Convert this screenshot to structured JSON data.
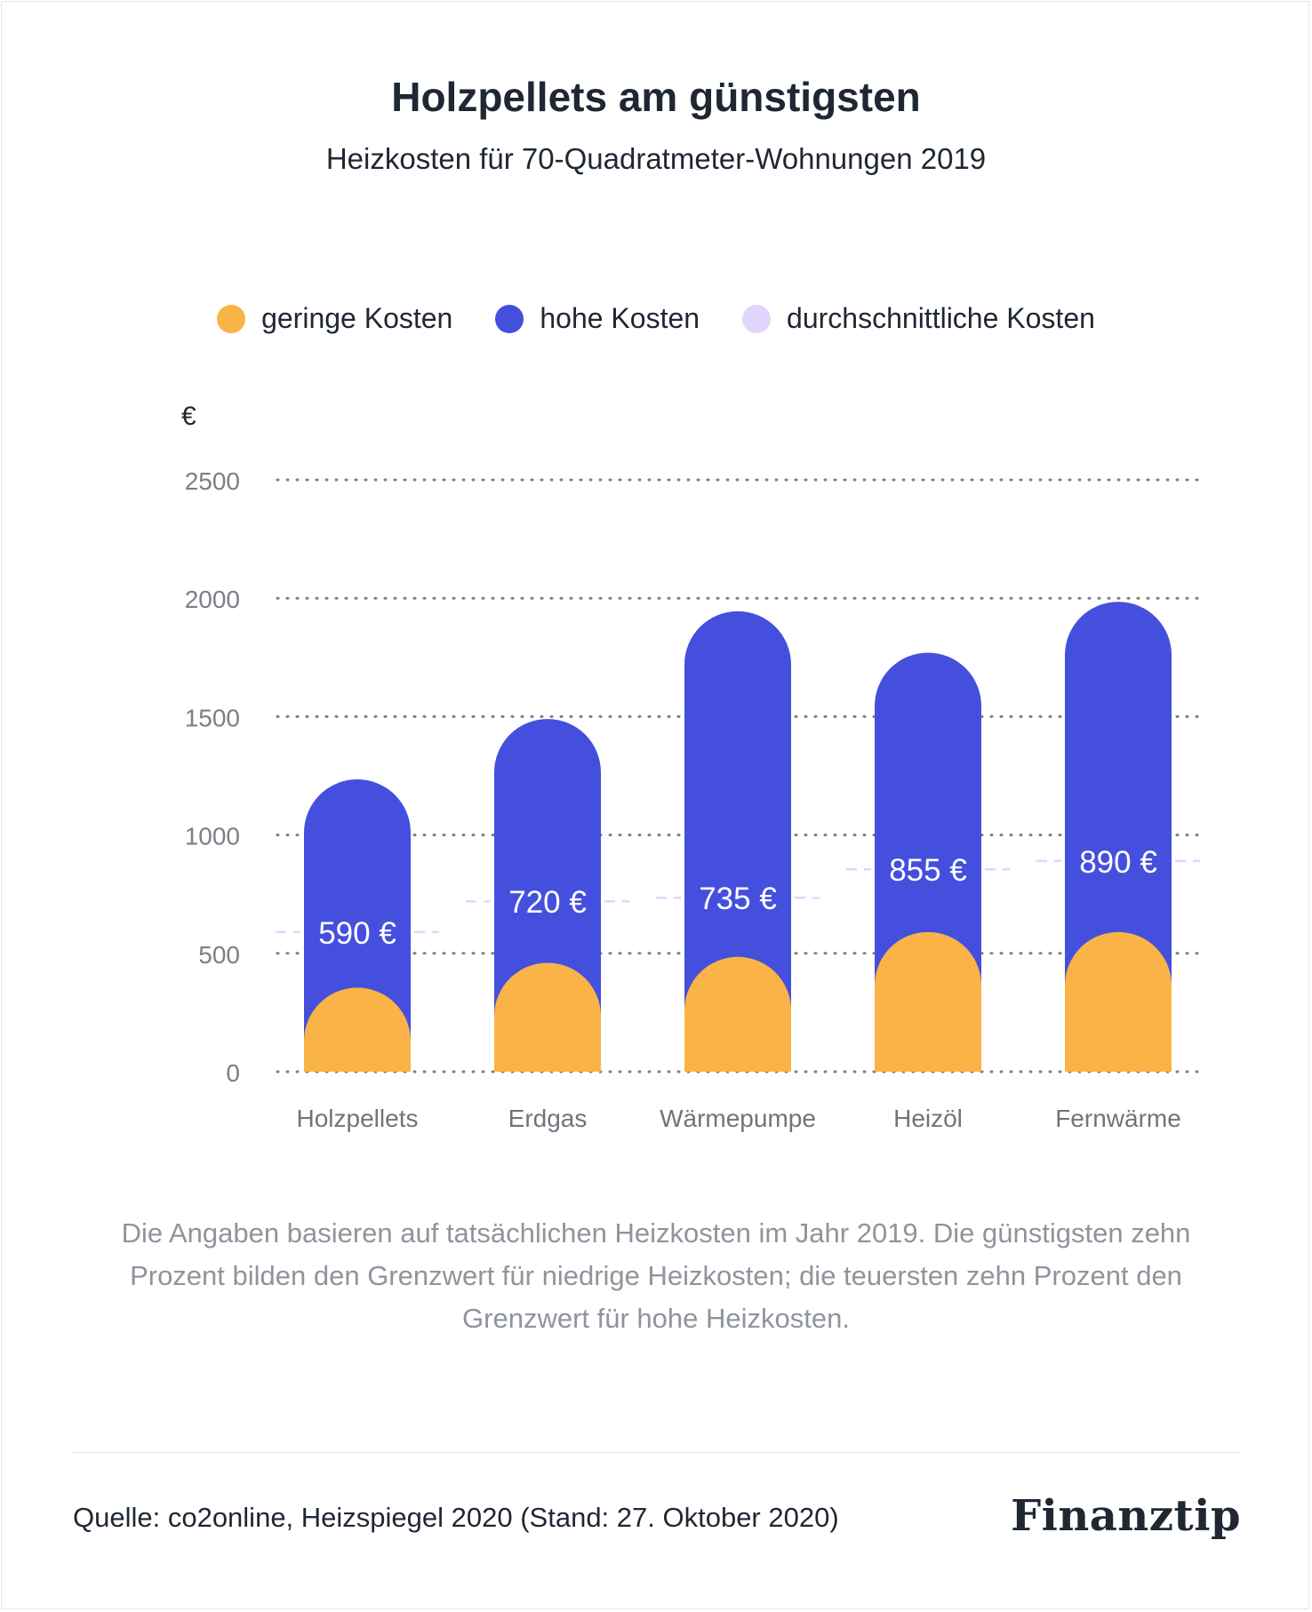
{
  "header": {
    "title": "Holzpellets am günstigsten",
    "subtitle": "Heizkosten für 70-Quadratmeter-Wohnungen 2019"
  },
  "legend": [
    {
      "label": "geringe Kosten",
      "color": "#F9B347"
    },
    {
      "label": "hohe Kosten",
      "color": "#4450DD"
    },
    {
      "label": "durchschnittliche Kosten",
      "color": "#E2D5FB"
    }
  ],
  "chart_data": {
    "type": "bar",
    "title": "Holzpellets am günstigsten",
    "subtitle": "Heizkosten für 70-Quadratmeter-Wohnungen 2019",
    "ylabel": "€",
    "xlabel": "",
    "ylim": [
      0,
      2500
    ],
    "yticks": [
      0,
      500,
      1000,
      1500,
      2000,
      2500
    ],
    "grid": true,
    "legend_position": "top",
    "categories": [
      "Holzpellets",
      "Erdgas",
      "Wärmepumpe",
      "Heizöl",
      "Fernwärme"
    ],
    "series": [
      {
        "name": "geringe Kosten",
        "color": "#F9B347",
        "values": [
          355,
          460,
          485,
          590,
          590
        ]
      },
      {
        "name": "hohe Kosten",
        "color": "#4450DD",
        "values": [
          1235,
          1490,
          1945,
          1770,
          1985
        ]
      },
      {
        "name": "durchschnittliche Kosten",
        "color": "#E2D5FB",
        "values": [
          590,
          720,
          735,
          855,
          890
        ]
      }
    ],
    "avg_labels": [
      "590 €",
      "720 €",
      "735 €",
      "855 €",
      "890 €"
    ]
  },
  "note": "Die Angaben basieren auf tatsächlichen Heizkosten im Jahr 2019. Die günstigsten zehn Prozent bilden den Grenzwert für niedrige Heizkosten; die teuersten zehn Prozent den Grenzwert für hohe Heizkosten.",
  "footer": {
    "source": "Quelle: co2online, Heizspiegel 2020 (Stand: 27. Oktober 2020)",
    "logo": "Finanztip"
  }
}
